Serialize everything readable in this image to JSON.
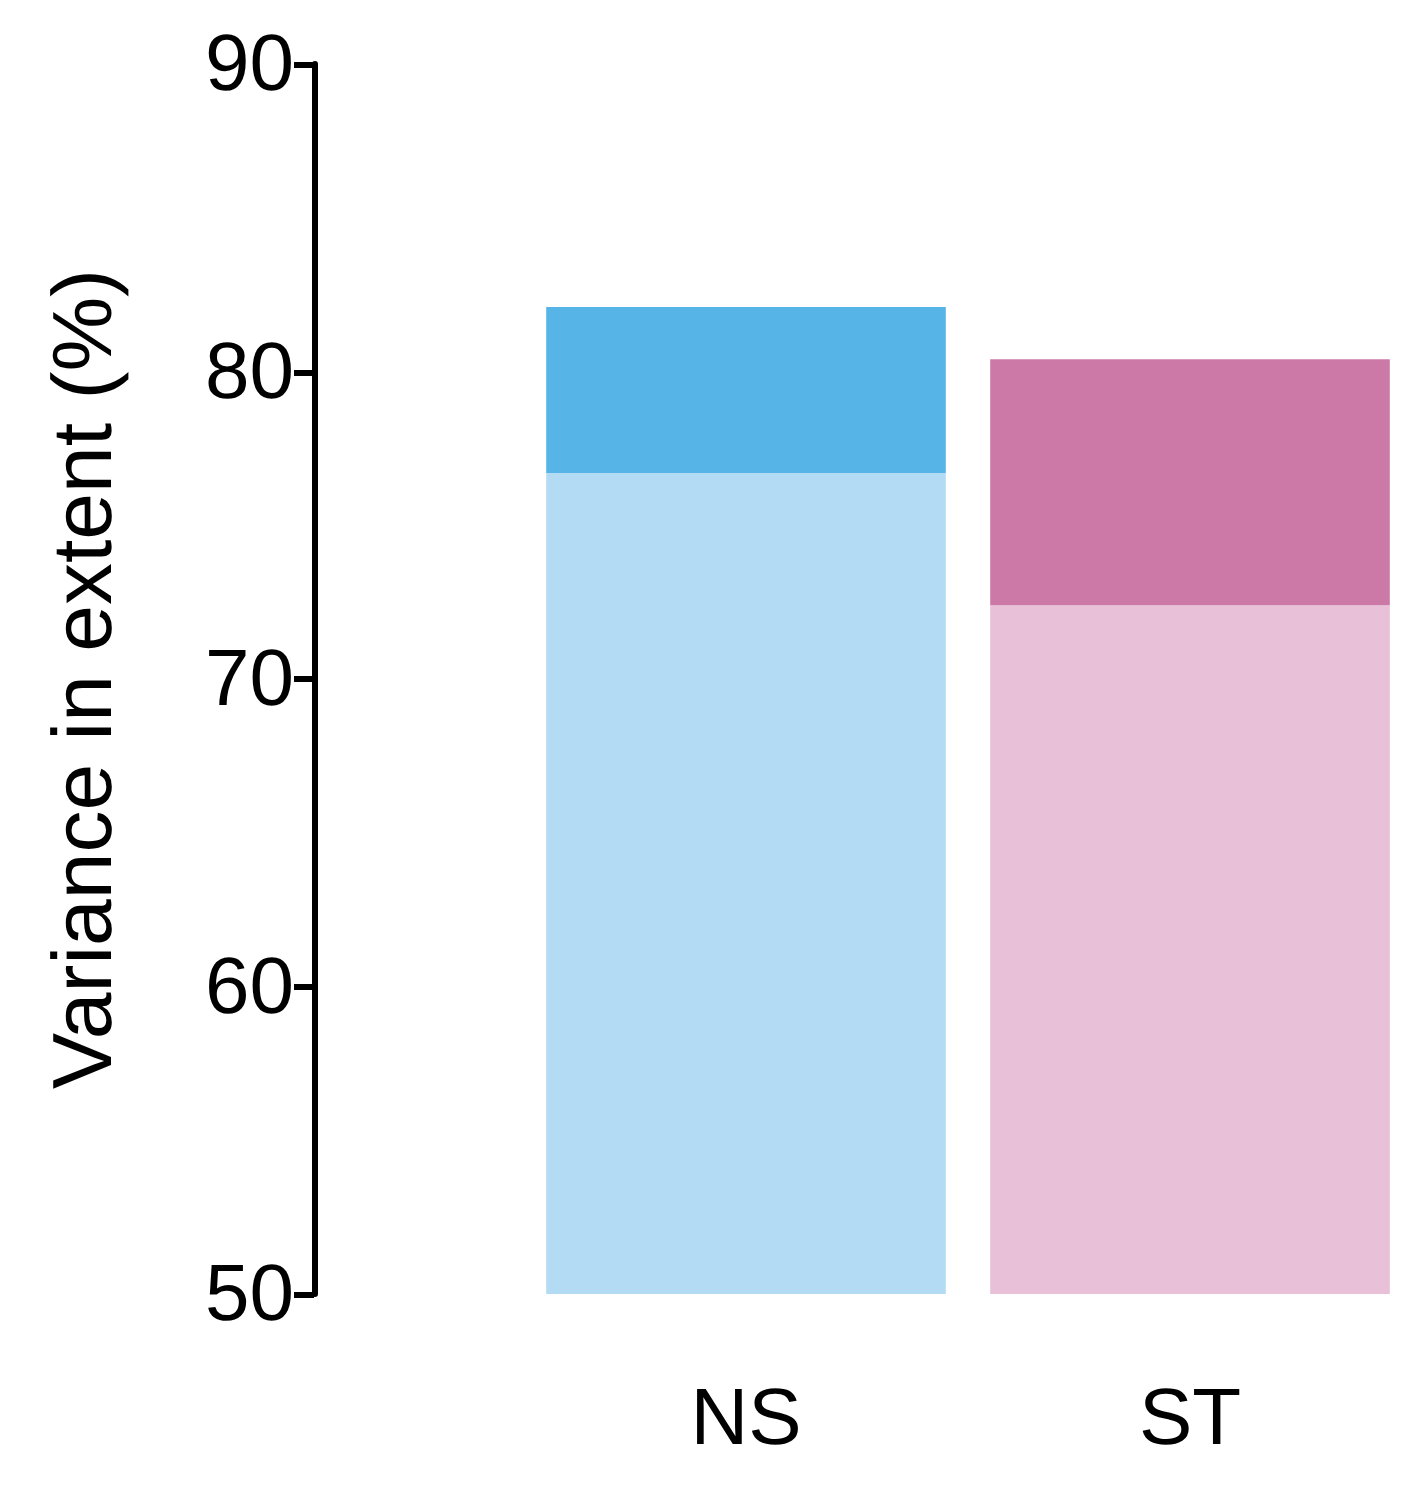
{
  "chart_data": {
    "type": "bar",
    "ylabel": "Variance in extent (%)",
    "categories": [
      "NS",
      "ST"
    ],
    "series": [
      {
        "colors": [
          "#b3dcf4",
          "#e8c0d8"
        ],
        "base": [
          50,
          50
        ],
        "values": [
          26.7,
          22.4
        ]
      },
      {
        "colors": [
          "#56b4e6",
          "#cc79a7"
        ],
        "base": [
          76.7,
          72.4
        ],
        "values": [
          5.4,
          8.0
        ]
      }
    ],
    "ylim": [
      50,
      90
    ],
    "yticks": [
      50,
      60,
      70,
      80,
      90
    ],
    "grid": false
  }
}
